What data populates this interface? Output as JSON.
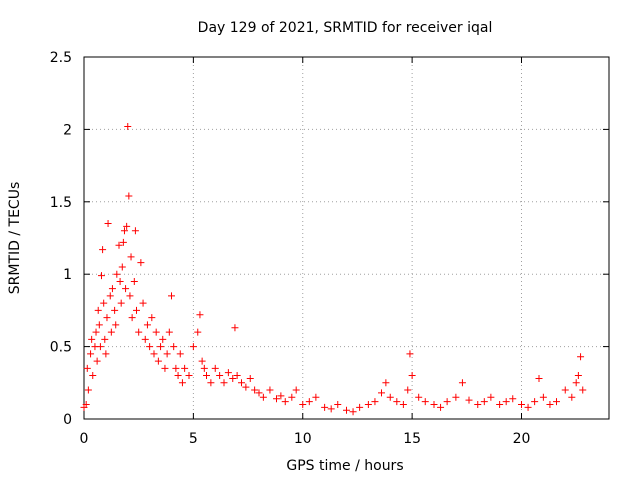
{
  "chart_data": {
    "type": "scatter",
    "title": "Day 129 of 2021, SRMTID for receiver iqal",
    "xlabel": "GPS time / hours",
    "ylabel": "SRMTID / TECUs",
    "xlim": [
      0,
      24
    ],
    "ylim": [
      0,
      2.5
    ],
    "xticks": [
      0,
      5,
      10,
      15,
      20
    ],
    "yticks": [
      0,
      0.5,
      1,
      1.5,
      2,
      2.5
    ],
    "xtick_labels": [
      "0",
      "5",
      "10",
      "15",
      "20"
    ],
    "ytick_labels": [
      "0",
      "0.5",
      "1",
      "1.5",
      "2",
      "2.5"
    ],
    "grid": true,
    "marker": "plus",
    "marker_color": "#ff0000",
    "series": [
      {
        "name": "SRMTID iqal",
        "x": [
          0.0,
          0.1,
          0.15,
          0.2,
          0.3,
          0.35,
          0.4,
          0.5,
          0.55,
          0.6,
          0.65,
          0.7,
          0.75,
          0.8,
          0.85,
          0.9,
          0.95,
          1.0,
          1.05,
          1.1,
          1.2,
          1.25,
          1.3,
          1.4,
          1.45,
          1.5,
          1.6,
          1.65,
          1.7,
          1.75,
          1.8,
          1.85,
          1.9,
          1.95,
          2.0,
          2.05,
          2.1,
          2.15,
          2.2,
          2.3,
          2.35,
          2.4,
          2.5,
          2.6,
          2.7,
          2.8,
          2.9,
          3.0,
          3.1,
          3.2,
          3.3,
          3.4,
          3.5,
          3.6,
          3.7,
          3.8,
          3.9,
          4.0,
          4.1,
          4.2,
          4.3,
          4.4,
          4.5,
          4.6,
          4.8,
          5.0,
          5.2,
          5.3,
          5.4,
          5.5,
          5.6,
          5.8,
          6.0,
          6.2,
          6.4,
          6.6,
          6.8,
          6.9,
          7.0,
          7.2,
          7.4,
          7.6,
          7.8,
          8.0,
          8.2,
          8.5,
          8.8,
          9.0,
          9.2,
          9.5,
          9.7,
          10.0,
          10.3,
          10.6,
          11.0,
          11.3,
          11.6,
          12.0,
          12.3,
          12.6,
          13.0,
          13.3,
          13.6,
          13.8,
          14.0,
          14.3,
          14.6,
          14.8,
          14.9,
          15.0,
          15.3,
          15.6,
          16.0,
          16.3,
          16.6,
          17.0,
          17.3,
          17.6,
          18.0,
          18.3,
          18.6,
          19.0,
          19.3,
          19.6,
          20.0,
          20.3,
          20.6,
          20.8,
          21.0,
          21.3,
          21.6,
          22.0,
          22.3,
          22.5,
          22.6,
          22.7,
          22.8
        ],
        "y": [
          0.08,
          0.1,
          0.35,
          0.2,
          0.45,
          0.55,
          0.3,
          0.5,
          0.6,
          0.4,
          0.75,
          0.65,
          0.5,
          0.99,
          1.17,
          0.8,
          0.55,
          0.45,
          0.7,
          1.35,
          0.85,
          0.6,
          0.9,
          0.75,
          0.65,
          1.0,
          1.2,
          0.95,
          0.8,
          1.05,
          1.22,
          1.3,
          0.9,
          1.33,
          2.02,
          1.54,
          0.85,
          1.12,
          0.7,
          0.95,
          1.3,
          0.75,
          0.6,
          1.08,
          0.8,
          0.55,
          0.65,
          0.5,
          0.7,
          0.45,
          0.6,
          0.4,
          0.5,
          0.55,
          0.35,
          0.45,
          0.6,
          0.85,
          0.5,
          0.35,
          0.3,
          0.45,
          0.25,
          0.35,
          0.3,
          0.5,
          0.6,
          0.72,
          0.4,
          0.35,
          0.3,
          0.25,
          0.35,
          0.3,
          0.25,
          0.32,
          0.28,
          0.63,
          0.3,
          0.25,
          0.22,
          0.28,
          0.2,
          0.18,
          0.15,
          0.2,
          0.14,
          0.16,
          0.12,
          0.15,
          0.2,
          0.1,
          0.12,
          0.15,
          0.08,
          0.07,
          0.1,
          0.06,
          0.05,
          0.08,
          0.1,
          0.12,
          0.18,
          0.25,
          0.15,
          0.12,
          0.1,
          0.2,
          0.45,
          0.3,
          0.15,
          0.12,
          0.1,
          0.08,
          0.12,
          0.15,
          0.25,
          0.13,
          0.1,
          0.12,
          0.15,
          0.1,
          0.12,
          0.14,
          0.1,
          0.08,
          0.12,
          0.28,
          0.15,
          0.1,
          0.12,
          0.2,
          0.15,
          0.25,
          0.3,
          0.43,
          0.2
        ]
      }
    ]
  }
}
